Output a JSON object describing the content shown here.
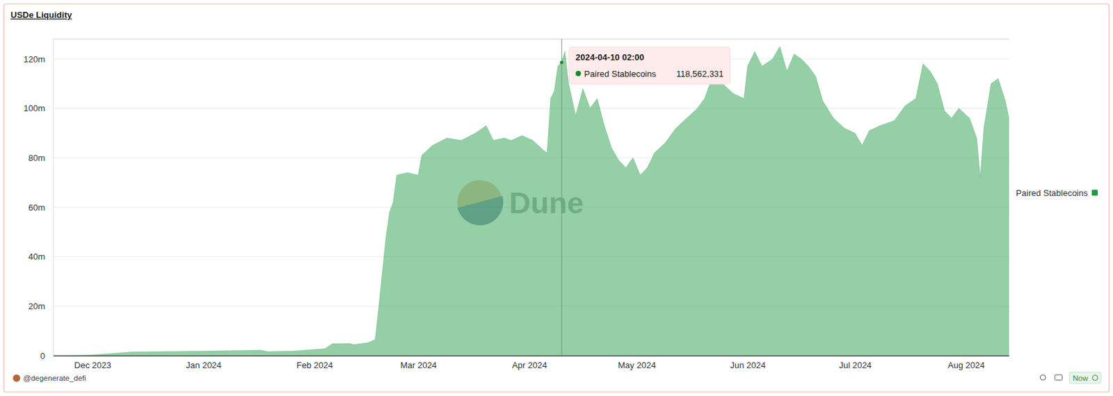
{
  "chart_data": {
    "type": "area",
    "title": "USDe Liquidity",
    "x": [
      "2023-11-20",
      "2023-11-28",
      "2023-12-01",
      "2023-12-06",
      "2023-12-12",
      "2023-12-20",
      "2024-01-01",
      "2024-01-10",
      "2024-01-17",
      "2024-01-19",
      "2024-01-26",
      "2024-02-01",
      "2024-02-04",
      "2024-02-06",
      "2024-02-11",
      "2024-02-12",
      "2024-02-16",
      "2024-02-18",
      "2024-02-19",
      "2024-02-20",
      "2024-02-21",
      "2024-02-22",
      "2024-02-23",
      "2024-02-24",
      "2024-02-27",
      "2024-03-01",
      "2024-03-02",
      "2024-03-05",
      "2024-03-09",
      "2024-03-13",
      "2024-03-17",
      "2024-03-20",
      "2024-03-22",
      "2024-03-25",
      "2024-03-27",
      "2024-03-30",
      "2024-04-02",
      "2024-04-05",
      "2024-04-06",
      "2024-04-07",
      "2024-04-08",
      "2024-04-09",
      "2024-04-10",
      "2024-04-11",
      "2024-04-12",
      "2024-04-14",
      "2024-04-16",
      "2024-04-18",
      "2024-04-20",
      "2024-04-22",
      "2024-04-24",
      "2024-04-26",
      "2024-04-28",
      "2024-04-30",
      "2024-05-02",
      "2024-05-04",
      "2024-05-06",
      "2024-05-09",
      "2024-05-12",
      "2024-05-15",
      "2024-05-18",
      "2024-05-20",
      "2024-05-22",
      "2024-05-25",
      "2024-05-28",
      "2024-05-31",
      "2024-06-01",
      "2024-06-03",
      "2024-06-05",
      "2024-06-08",
      "2024-06-10",
      "2024-06-12",
      "2024-06-14",
      "2024-06-16",
      "2024-06-18",
      "2024-06-20",
      "2024-06-22",
      "2024-06-25",
      "2024-06-28",
      "2024-07-01",
      "2024-07-03",
      "2024-07-05",
      "2024-07-08",
      "2024-07-12",
      "2024-07-15",
      "2024-07-18",
      "2024-07-20",
      "2024-07-22",
      "2024-07-24",
      "2024-07-26",
      "2024-07-28",
      "2024-07-30",
      "2024-08-02",
      "2024-08-04",
      "2024-08-05",
      "2024-08-06",
      "2024-08-08",
      "2024-08-10",
      "2024-08-12",
      "2024-08-13"
    ],
    "series": [
      {
        "name": "Paired Stablecoins",
        "color": "#1f9a45",
        "values": [
          0,
          0.1,
          0.3,
          0.8,
          1.5,
          1.6,
          1.8,
          2.0,
          2.2,
          1.6,
          1.8,
          2.5,
          2.8,
          4.8,
          4.9,
          4.4,
          5.2,
          6.5,
          20,
          34,
          48,
          58,
          62,
          73,
          74,
          73,
          81,
          85,
          88,
          87,
          90,
          93,
          87,
          88,
          87,
          89,
          87,
          83,
          82,
          104,
          107,
          117,
          118.6,
          123,
          110,
          97,
          108,
          100,
          104,
          93,
          84,
          79,
          76,
          80,
          73,
          76,
          82,
          86,
          92,
          96,
          100,
          104,
          112,
          110,
          106,
          104,
          117,
          123,
          117,
          120,
          125,
          115,
          122,
          120,
          117,
          113,
          103,
          96,
          92,
          90,
          85,
          91,
          93,
          95,
          101,
          104,
          118,
          115,
          110,
          99,
          96,
          100,
          96,
          88,
          72,
          92,
          110,
          112,
          103,
          96
        ]
      }
    ],
    "xlim": [
      "2023-11-20",
      "2024-08-13"
    ],
    "xticks": [
      {
        "value": "2023-12-01",
        "label": "Dec 2023"
      },
      {
        "value": "2024-01-01",
        "label": "Jan 2024"
      },
      {
        "value": "2024-02-01",
        "label": "Feb 2024"
      },
      {
        "value": "2024-03-01",
        "label": "Mar 2024"
      },
      {
        "value": "2024-04-01",
        "label": "Apr 2024"
      },
      {
        "value": "2024-05-01",
        "label": "May 2024"
      },
      {
        "value": "2024-06-01",
        "label": "Jun 2024"
      },
      {
        "value": "2024-07-01",
        "label": "Jul 2024"
      },
      {
        "value": "2024-08-01",
        "label": "Aug 2024"
      }
    ],
    "ylim": [
      0,
      128
    ],
    "yticks": [
      0,
      {
        "value": 20,
        "label": "20m"
      },
      {
        "value": 40,
        "label": "40m"
      },
      {
        "value": 60,
        "label": "60m"
      },
      {
        "value": 80,
        "label": "80m"
      },
      {
        "value": 100,
        "label": "100m"
      },
      {
        "value": 120,
        "label": "120m"
      }
    ],
    "grid": true,
    "legend": "right",
    "annotations": [
      {
        "x": "2024-04-10 02:00",
        "label": "Paired Stablecoins",
        "value": 118.562331,
        "value_label": "118,562,331"
      },
      {
        "text": "Dune"
      },
      {
        "text": "@degenerate_defi"
      },
      {
        "text": "Now"
      }
    ]
  }
}
